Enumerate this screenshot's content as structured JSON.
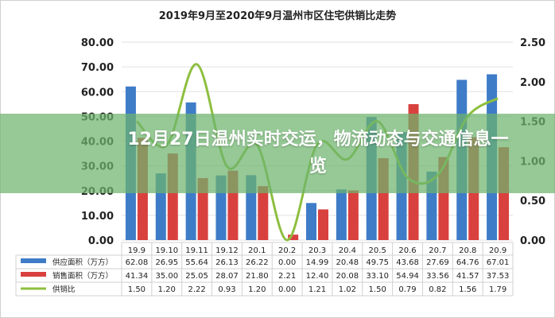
{
  "chart_data": {
    "type": "bar",
    "title": "2019年9月至2020年9月温州市区住宅供销比走势",
    "categories": [
      "19.9",
      "19.10",
      "19.11",
      "19.12",
      "20.1",
      "20.2",
      "20.3",
      "20.4",
      "20.5",
      "20.6",
      "20.7",
      "20.8",
      "20.9"
    ],
    "series": [
      {
        "name": "供应面积（万方）",
        "type": "bar",
        "axis": "left",
        "color": "#3f7cc8",
        "values": [
          62.08,
          26.95,
          55.64,
          26.13,
          26.22,
          0.0,
          14.99,
          20.48,
          49.75,
          43.68,
          27.69,
          64.76,
          67.01
        ]
      },
      {
        "name": "销售面积（万方）",
        "type": "bar",
        "axis": "left",
        "color": "#d9413f",
        "values": [
          41.34,
          35.0,
          25.05,
          28.07,
          21.8,
          2.21,
          12.4,
          20.08,
          33.1,
          54.94,
          33.56,
          41.57,
          37.53
        ]
      },
      {
        "name": "供销比",
        "type": "line",
        "axis": "right",
        "color": "#8dbf3f",
        "values": [
          1.5,
          1.2,
          2.22,
          0.93,
          1.2,
          0.0,
          1.21,
          1.02,
          1.5,
          0.79,
          0.82,
          1.56,
          1.79
        ]
      }
    ],
    "ylim_left": [
      0,
      80
    ],
    "yticks_left": [
      "0.00",
      "10.00",
      "20.00",
      "30.00",
      "40.00",
      "50.00",
      "60.00",
      "70.00",
      "80.00"
    ],
    "ylim_right": [
      0,
      2.5
    ],
    "yticks_right": [
      "0.00",
      "0.50",
      "1.00",
      "1.50",
      "2.00",
      "2.50"
    ],
    "grid": true,
    "legend": "bottom data table"
  },
  "banner": {
    "text": "12月27日温州实时交运，物流动态与交通信息一览"
  }
}
